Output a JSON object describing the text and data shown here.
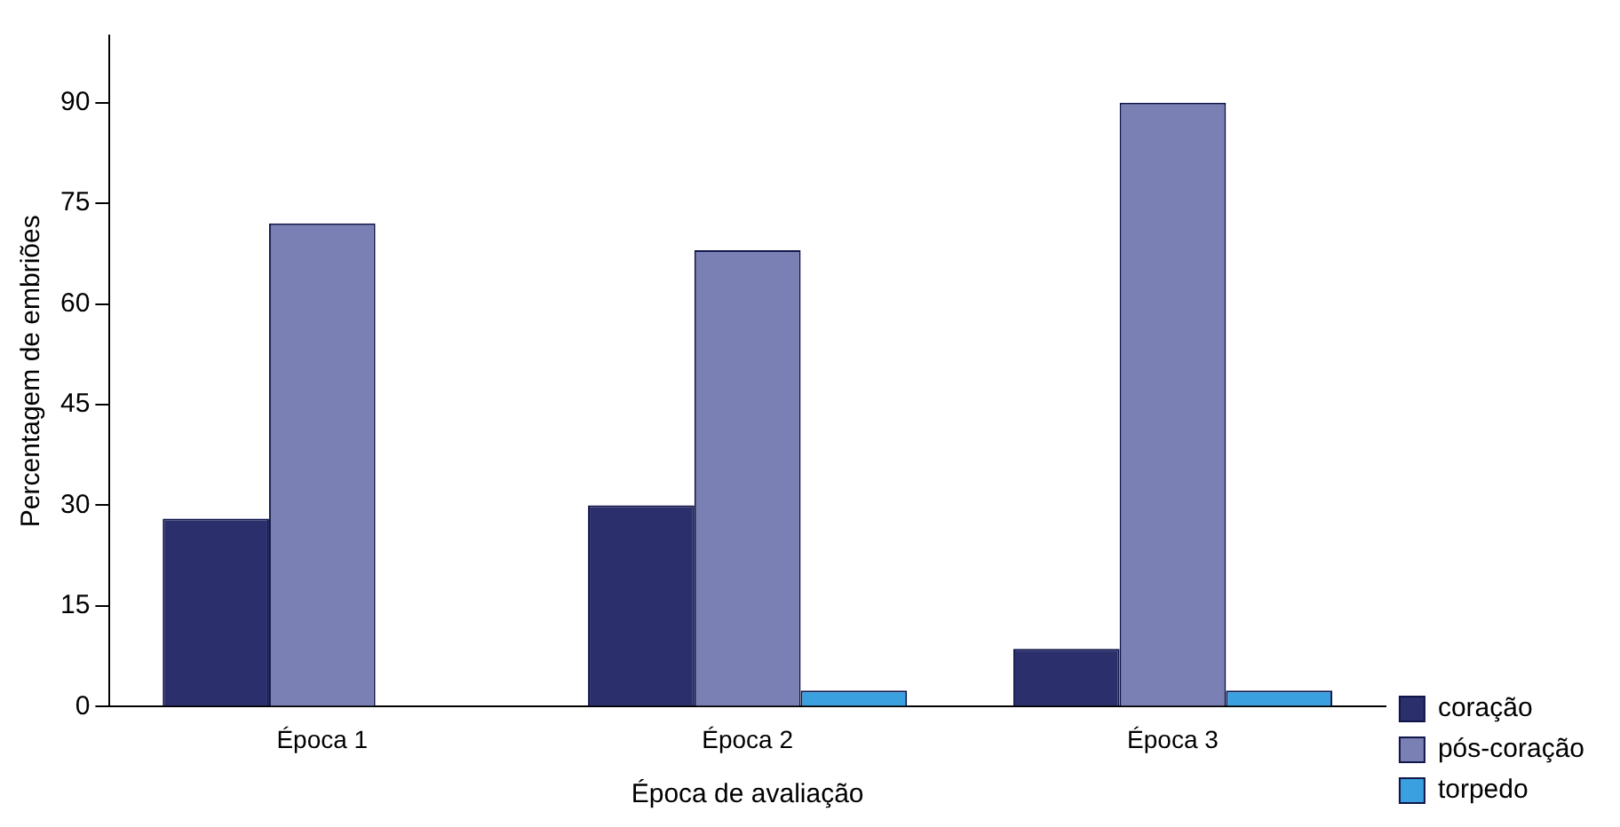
{
  "chart_data": {
    "type": "bar",
    "xlabel": "Época de avaliação",
    "ylabel": "Percentagem de embriões",
    "categories": [
      "Época 1",
      "Época 2",
      "Época 3"
    ],
    "series": [
      {
        "name": "coração",
        "color": "#2b2f6b",
        "values": [
          28,
          30,
          8.6
        ]
      },
      {
        "name": "pós-coração",
        "color": "#7b80b4",
        "values": [
          72,
          68,
          90
        ]
      },
      {
        "name": "torpedo",
        "color": "#3aa0e0",
        "values": [
          0,
          2.4,
          2.4
        ]
      }
    ],
    "ylim": [
      0,
      100
    ],
    "yticks": [
      0,
      15,
      30,
      45,
      60,
      75,
      90
    ],
    "grid": false,
    "legend": "right"
  }
}
